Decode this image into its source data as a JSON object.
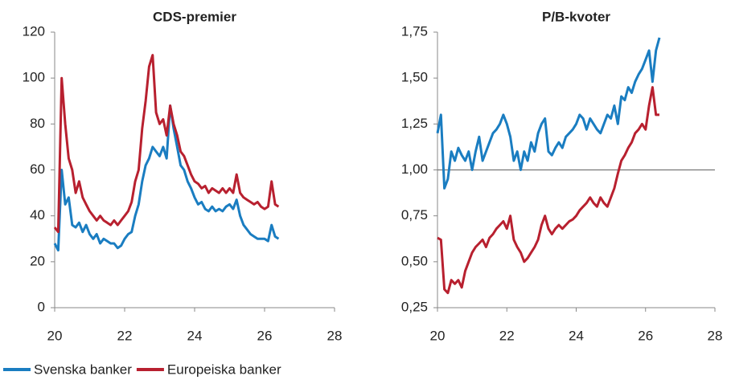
{
  "chart_data": [
    {
      "type": "line",
      "title": "CDS-premier",
      "x": [
        20,
        20.1,
        20.2,
        20.3,
        20.4,
        20.5,
        20.6,
        20.7,
        20.8,
        20.9,
        21,
        21.1,
        21.2,
        21.3,
        21.4,
        21.5,
        21.6,
        21.7,
        21.8,
        21.9,
        22,
        22.1,
        22.2,
        22.3,
        22.4,
        22.5,
        22.6,
        22.7,
        22.8,
        22.9,
        23,
        23.1,
        23.2,
        23.3,
        23.4,
        23.5,
        23.6,
        23.7,
        23.8,
        23.9,
        24,
        24.1,
        24.2,
        24.3,
        24.4,
        24.5,
        24.6,
        24.7,
        24.8,
        24.9,
        25,
        25.1,
        25.2,
        25.3,
        25.4,
        25.5,
        25.6,
        25.7,
        25.8,
        25.9,
        26,
        26.1,
        26.2,
        26.3,
        26.4
      ],
      "series": [
        {
          "name": "Svenska banker",
          "color": "#1a7dc1",
          "values": [
            28,
            25,
            60,
            45,
            48,
            36,
            35,
            37,
            33,
            36,
            32,
            30,
            32,
            28,
            30,
            29,
            28,
            28,
            26,
            27,
            30,
            32,
            33,
            40,
            45,
            55,
            62,
            65,
            70,
            68,
            66,
            70,
            65,
            88,
            78,
            70,
            62,
            60,
            55,
            52,
            48,
            45,
            46,
            43,
            42,
            44,
            42,
            43,
            42,
            44,
            45,
            43,
            47,
            40,
            36,
            34,
            32,
            31,
            30,
            30,
            30,
            29,
            36,
            31,
            30
          ]
        },
        {
          "name": "Europeiska banker",
          "color": "#b8202f",
          "values": [
            35,
            33,
            100,
            80,
            65,
            60,
            50,
            55,
            48,
            45,
            42,
            40,
            38,
            40,
            38,
            37,
            36,
            38,
            36,
            38,
            40,
            42,
            46,
            55,
            60,
            78,
            90,
            105,
            110,
            85,
            80,
            82,
            75,
            88,
            80,
            75,
            68,
            66,
            62,
            58,
            55,
            54,
            52,
            53,
            50,
            52,
            51,
            50,
            52,
            50,
            52,
            50,
            58,
            50,
            48,
            47,
            46,
            45,
            46,
            44,
            43,
            44,
            55,
            45,
            44
          ]
        }
      ],
      "xlim": [
        20,
        28
      ],
      "xticks": [
        20,
        22,
        24,
        26,
        28
      ],
      "ylim": [
        0,
        120
      ],
      "yticks": [
        0,
        20,
        40,
        60,
        80,
        100,
        120
      ]
    },
    {
      "type": "line",
      "title": "P/B-kvoter",
      "x": [
        20,
        20.1,
        20.2,
        20.3,
        20.4,
        20.5,
        20.6,
        20.7,
        20.8,
        20.9,
        21,
        21.1,
        21.2,
        21.3,
        21.4,
        21.5,
        21.6,
        21.7,
        21.8,
        21.9,
        22,
        22.1,
        22.2,
        22.3,
        22.4,
        22.5,
        22.6,
        22.7,
        22.8,
        22.9,
        23,
        23.1,
        23.2,
        23.3,
        23.4,
        23.5,
        23.6,
        23.7,
        23.8,
        23.9,
        24,
        24.1,
        24.2,
        24.3,
        24.4,
        24.5,
        24.6,
        24.7,
        24.8,
        24.9,
        25,
        25.1,
        25.2,
        25.3,
        25.4,
        25.5,
        25.6,
        25.7,
        25.8,
        25.9,
        26,
        26.1,
        26.2,
        26.3,
        26.4
      ],
      "series": [
        {
          "color": "#1a7dc1",
          "values": [
            1.2,
            1.3,
            0.9,
            0.95,
            1.1,
            1.05,
            1.12,
            1.08,
            1.05,
            1.1,
            1.0,
            1.1,
            1.18,
            1.05,
            1.1,
            1.15,
            1.2,
            1.22,
            1.25,
            1.3,
            1.25,
            1.18,
            1.05,
            1.1,
            1.0,
            1.1,
            1.05,
            1.15,
            1.1,
            1.2,
            1.25,
            1.28,
            1.1,
            1.08,
            1.12,
            1.15,
            1.12,
            1.18,
            1.2,
            1.22,
            1.25,
            1.3,
            1.28,
            1.22,
            1.28,
            1.25,
            1.22,
            1.2,
            1.25,
            1.3,
            1.28,
            1.35,
            1.25,
            1.4,
            1.38,
            1.45,
            1.42,
            1.48,
            1.52,
            1.55,
            1.6,
            1.65,
            1.48,
            1.65,
            1.72
          ]
        },
        {
          "color": "#b8202f",
          "values": [
            0.63,
            0.62,
            0.35,
            0.33,
            0.4,
            0.38,
            0.4,
            0.36,
            0.45,
            0.5,
            0.55,
            0.58,
            0.6,
            0.62,
            0.58,
            0.63,
            0.65,
            0.68,
            0.7,
            0.72,
            0.68,
            0.75,
            0.62,
            0.58,
            0.55,
            0.5,
            0.52,
            0.55,
            0.58,
            0.62,
            0.7,
            0.75,
            0.68,
            0.65,
            0.68,
            0.7,
            0.68,
            0.7,
            0.72,
            0.73,
            0.75,
            0.78,
            0.8,
            0.82,
            0.85,
            0.82,
            0.8,
            0.85,
            0.82,
            0.8,
            0.85,
            0.9,
            0.98,
            1.05,
            1.08,
            1.12,
            1.15,
            1.2,
            1.22,
            1.25,
            1.22,
            1.35,
            1.45,
            1.3,
            1.3
          ]
        }
      ],
      "reference_line": 1,
      "xlim": [
        20,
        28
      ],
      "xticks": [
        20,
        22,
        24,
        26,
        28
      ],
      "ylim": [
        0.25,
        1.75
      ],
      "yticks": [
        {
          "value": 0.25,
          "label": "0,25"
        },
        {
          "value": 0.5,
          "label": "0,50"
        },
        {
          "value": 0.75,
          "label": "0,75"
        },
        {
          "value": 1,
          "label": "1,00"
        },
        {
          "value": 1.25,
          "label": "1,25"
        },
        {
          "value": 1.5,
          "label": "1,50"
        },
        {
          "value": 1.75,
          "label": "1,75"
        }
      ]
    }
  ]
}
